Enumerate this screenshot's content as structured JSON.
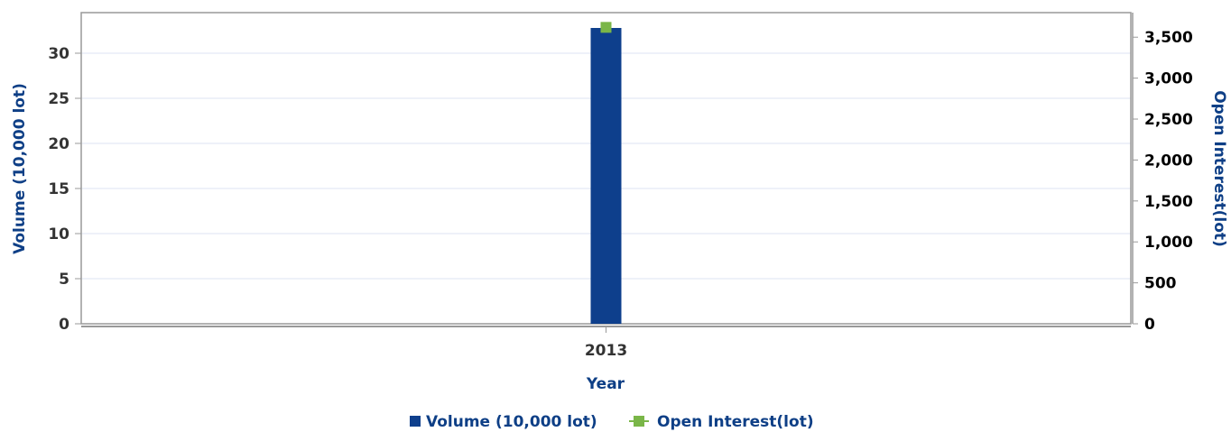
{
  "chart_data": {
    "type": "bar",
    "title": "",
    "categories": [
      "2013"
    ],
    "xlabel": "Year",
    "ylabel": "Volume (10,000 lot)",
    "y2label": "Open Interest(lot)",
    "ylim": [
      0,
      34.5
    ],
    "y2lim": [
      0,
      3800
    ],
    "yticks": [
      0,
      5,
      10,
      15,
      20,
      25,
      30
    ],
    "ytick_labels": [
      "0",
      "5",
      "10",
      "15",
      "20",
      "25",
      "30"
    ],
    "y2ticks": [
      0,
      500,
      1000,
      1500,
      2000,
      2500,
      3000,
      3500
    ],
    "y2tick_labels": [
      "0",
      "500",
      "1,000",
      "1,500",
      "2,000",
      "2,500",
      "3,000",
      "3,500"
    ],
    "grid": true,
    "legend_position": "bottom-center",
    "series": [
      {
        "name": "Volume (10,000 lot)",
        "type": "bar",
        "axis": "left",
        "color": "#0e3f8c",
        "values": [
          32.8
        ]
      },
      {
        "name": "Open Interest(lot)",
        "type": "line",
        "axis": "right",
        "color": "#7ab648",
        "values": [
          3620
        ]
      }
    ]
  }
}
